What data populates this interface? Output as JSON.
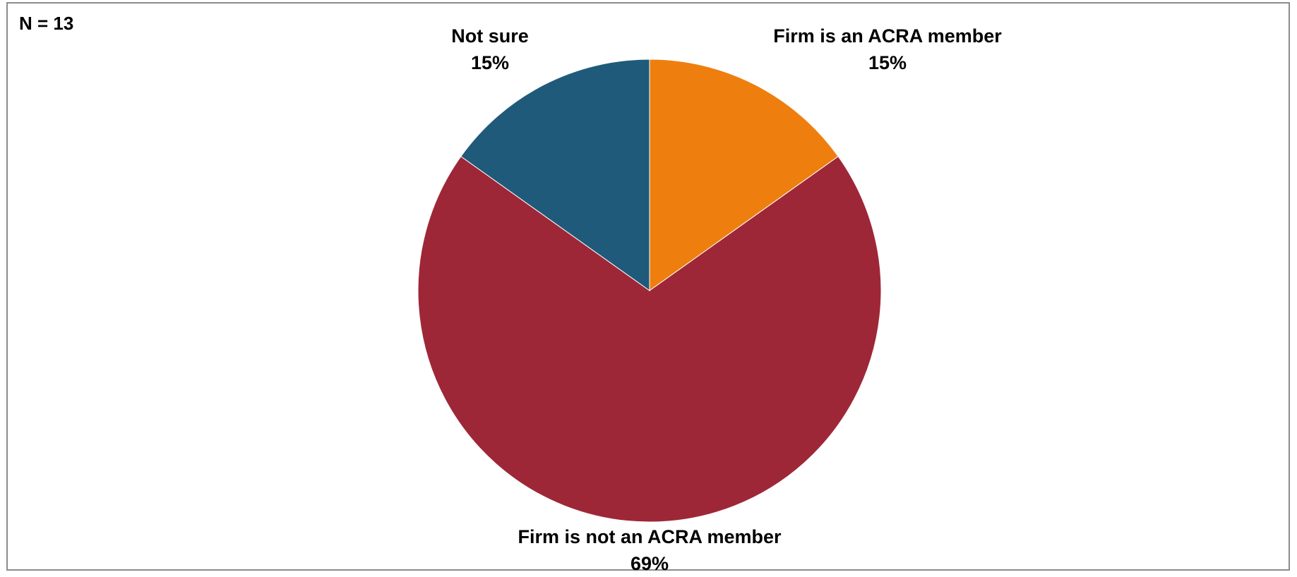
{
  "annotation": "N = 13",
  "chart_data": {
    "type": "pie",
    "title": "",
    "slices": [
      {
        "label": "Firm is an ACRA member",
        "value": 15,
        "value_label": "15%",
        "color": "#ee7f0e"
      },
      {
        "label": "Firm is not an ACRA member",
        "value": 69,
        "value_label": "69%",
        "color": "#9e2737"
      },
      {
        "label": "Not sure",
        "value": 15,
        "value_label": "15%",
        "color": "#1f5a7b"
      }
    ],
    "start_angle_deg": 0,
    "direction": "clockwise",
    "legend": "none",
    "labels": "outside"
  }
}
